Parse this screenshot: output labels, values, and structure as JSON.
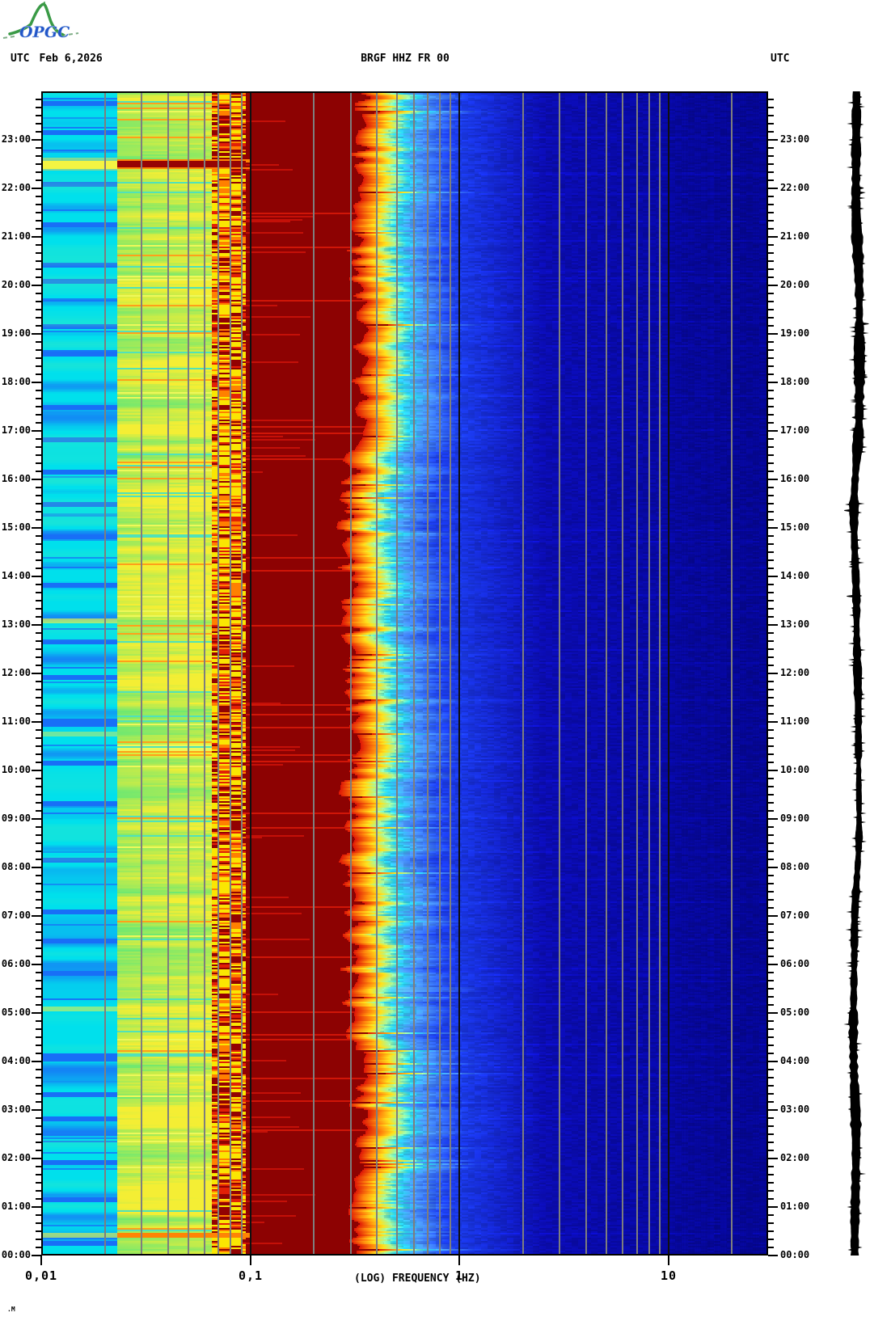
{
  "header": {
    "utc_left": "UTC",
    "date": "Feb 6,2026",
    "title": "BRGF HHZ FR 00",
    "utc_right": "UTC"
  },
  "logo": {
    "text": "OPGC"
  },
  "footer": {
    "mark": ".M"
  },
  "colors": {
    "background": "#ffffff",
    "text": "#000000",
    "axis": "#000000",
    "grid_minor": "#7e7e7e",
    "grid_decade": "#101010",
    "logo_green": "#3a9a46",
    "logo_blue": "#2256c8",
    "trace": "#000000"
  },
  "chart_data": {
    "type": "heatmap",
    "subtype": "24-hour seismic spectrogram with side seismogram trace",
    "title": "BRGF HHZ FR 00",
    "station": "BRGF",
    "channel": "HHZ",
    "network": "FR",
    "location_code": "00",
    "date": "Feb 6,2026",
    "timezone": "UTC",
    "xlabel": "(LOG) FREQUENCY (HZ)",
    "x_scale": "log",
    "x_range_hz": [
      0.01,
      30
    ],
    "x_tick_values_hz": [
      0.01,
      0.1,
      1,
      10
    ],
    "x_tick_labels": [
      "0,01",
      "0,1",
      "1",
      "10"
    ],
    "x_grid_minor_hz": [
      0.02,
      0.03,
      0.04,
      0.05,
      0.06,
      0.07,
      0.08,
      0.09,
      0.2,
      0.3,
      0.4,
      0.5,
      0.6,
      0.7,
      0.8,
      0.9,
      2,
      3,
      4,
      5,
      6,
      7,
      8,
      9,
      20
    ],
    "x_grid_decade_hz": [
      0.1,
      1,
      10
    ],
    "y_axis": "time of day (UTC), 00:00 at bottom to 24:00 at top, labels on both sides",
    "y_hour_labels": [
      "23:00",
      "22:00",
      "21:00",
      "20:00",
      "19:00",
      "18:00",
      "17:00",
      "16:00",
      "15:00",
      "14:00",
      "13:00",
      "12:00",
      "11:00",
      "10:00",
      "09:00",
      "08:00",
      "07:00",
      "06:00",
      "05:00",
      "04:00",
      "03:00",
      "02:00",
      "01:00",
      "00:00"
    ],
    "y_minor_tick_minutes": 10,
    "colormap": "jet (navy=low power, cyan/green/yellow=mid, dark red=saturated high)",
    "power_bands": [
      {
        "freq_hz": [
          0.01,
          0.023
        ],
        "level": "mid-low",
        "color": "cyan with horizontal blue quiet stripes"
      },
      {
        "freq_hz": [
          0.023,
          0.065
        ],
        "level": "mid",
        "color": "green-to-yellow striped"
      },
      {
        "freq_hz": [
          0.065,
          0.095
        ],
        "level": "mid-high",
        "color": "yellow with orange/red/dark-red dashes"
      },
      {
        "freq_hz": [
          0.095,
          0.31
        ],
        "level": "saturated high (secondary microseism)",
        "color": "solid dark red"
      },
      {
        "freq_hz": [
          0.31,
          0.55
        ],
        "level": "high, decaying",
        "color": "red-orange-yellow jagged rolloff"
      },
      {
        "freq_hz": [
          0.55,
          0.9
        ],
        "level": "mid, decaying",
        "color": "green-cyan-light-blue rolloff"
      },
      {
        "freq_hz": [
          0.9,
          30
        ],
        "level": "low",
        "color": "deep navy blue with faint texture"
      }
    ],
    "events": [
      {
        "time": "22:30",
        "kind": "transient",
        "band1": "yellow",
        "band23": "dark-red",
        "fringe": "orange",
        "strength": 1,
        "description": "strong transient: bright yellow line 0.01-0.023 Hz, dark red line 0.023-0.1 Hz with orange fringe"
      },
      {
        "time": "00:25",
        "kind": "transient",
        "band1": "yellow",
        "band23": "orange",
        "strength": 0.6,
        "description": "orange-red line across 0.023-0.1 Hz"
      },
      {
        "time": "05:30",
        "kind": "streak",
        "strength": 0.8,
        "description": "light blue streak 0.45-1.3 Hz in navy region"
      },
      {
        "time": "13:05",
        "kind": "band1-yellow",
        "strength": 0.65,
        "description": "yellow line 0.01-0.023 Hz"
      },
      {
        "time": "10:45",
        "kind": "band1-yellow",
        "strength": 0.45,
        "description": "faint yellow line 0.01-0.023 Hz"
      },
      {
        "time": "05:05",
        "kind": "band1-yellow",
        "strength": 0.55,
        "description": "yellow-orange line 0.01-0.023 Hz"
      }
    ],
    "quiet_blue_stripe_times": [
      "23:45",
      "23:10",
      "22:05",
      "21:15",
      "20:25",
      "20:05",
      "19:10",
      "18:35",
      "17:30",
      "16:50",
      "16:10",
      "15:30",
      "14:50",
      "13:50",
      "12:40",
      "11:55",
      "11:00",
      "10:10",
      "09:20",
      "08:10",
      "07:05",
      "06:30",
      "05:50",
      "04:05",
      "03:20",
      "02:50",
      "01:55",
      "01:10",
      "00:15"
    ],
    "side_trace": {
      "description": "24 h vertical seismogram amplitude trace, full plot height",
      "color": "#000000"
    }
  }
}
